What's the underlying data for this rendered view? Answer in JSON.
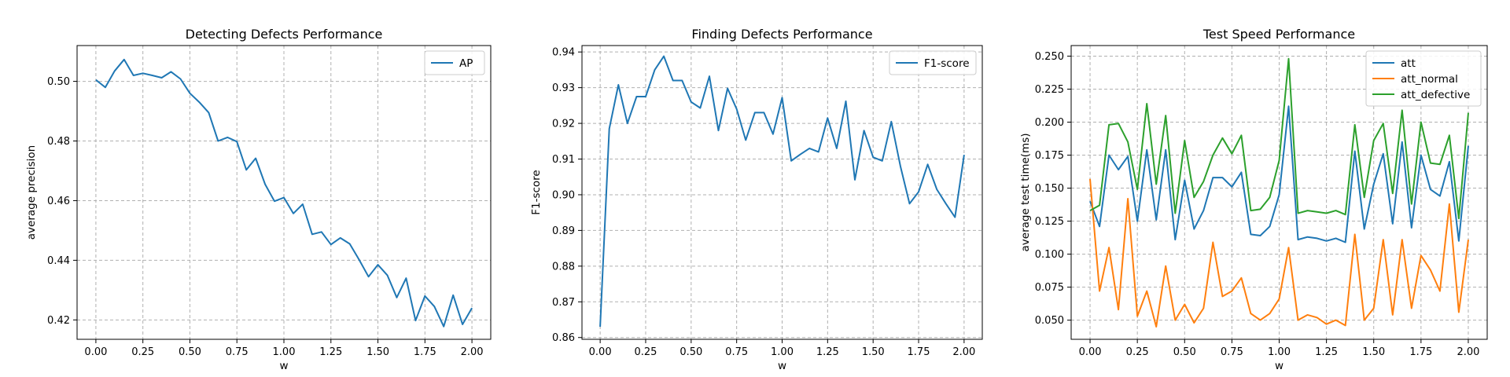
{
  "chart_data": [
    {
      "type": "line",
      "title": "Detecting Defects Performance",
      "xlabel": "w",
      "ylabel": "average precision",
      "xlim": [
        -0.1,
        2.1
      ],
      "ylim": [
        0.4135,
        0.512
      ],
      "xticks": [
        0.0,
        0.25,
        0.5,
        0.75,
        1.0,
        1.25,
        1.5,
        1.75,
        2.0
      ],
      "xtick_labels": [
        "0.00",
        "0.25",
        "0.50",
        "0.75",
        "1.00",
        "1.25",
        "1.50",
        "1.75",
        "2.00"
      ],
      "yticks": [
        0.42,
        0.44,
        0.46,
        0.48,
        0.5
      ],
      "ytick_labels": [
        "0.42",
        "0.44",
        "0.46",
        "0.48",
        "0.50"
      ],
      "grid": true,
      "legend_position": "upper-right",
      "x": [
        0.0,
        0.05,
        0.1,
        0.15,
        0.2,
        0.25,
        0.3,
        0.35,
        0.4,
        0.45,
        0.5,
        0.55,
        0.6,
        0.65,
        0.7,
        0.75,
        0.8,
        0.85,
        0.9,
        0.95,
        1.0,
        1.05,
        1.1,
        1.15,
        1.2,
        1.25,
        1.3,
        1.35,
        1.4,
        1.45,
        1.5,
        1.55,
        1.6,
        1.65,
        1.7,
        1.75,
        1.8,
        1.85,
        1.9,
        1.95,
        2.0
      ],
      "series": [
        {
          "name": "AP",
          "color": "#1f77b4",
          "values": [
            0.5005,
            0.498,
            0.5035,
            0.5073,
            0.502,
            0.5027,
            0.502,
            0.5012,
            0.5032,
            0.5008,
            0.496,
            0.493,
            0.4895,
            0.48,
            0.4812,
            0.4798,
            0.4703,
            0.4742,
            0.4655,
            0.4598,
            0.461,
            0.4557,
            0.4588,
            0.4487,
            0.4495,
            0.4453,
            0.4475,
            0.4455,
            0.4402,
            0.4345,
            0.4385,
            0.435,
            0.4275,
            0.434,
            0.4198,
            0.428,
            0.4245,
            0.4178,
            0.4283,
            0.4185,
            0.424
          ]
        }
      ]
    },
    {
      "type": "line",
      "title": "Finding Defects Performance",
      "xlabel": "w",
      "ylabel": "F1-score",
      "xlim": [
        -0.1,
        2.1
      ],
      "ylim": [
        0.8595,
        0.9418
      ],
      "xticks": [
        0.0,
        0.25,
        0.5,
        0.75,
        1.0,
        1.25,
        1.5,
        1.75,
        2.0
      ],
      "xtick_labels": [
        "0.00",
        "0.25",
        "0.50",
        "0.75",
        "1.00",
        "1.25",
        "1.50",
        "1.75",
        "2.00"
      ],
      "yticks": [
        0.86,
        0.87,
        0.88,
        0.89,
        0.9,
        0.91,
        0.92,
        0.93,
        0.94
      ],
      "ytick_labels": [
        "0.86",
        "0.87",
        "0.88",
        "0.89",
        "0.90",
        "0.91",
        "0.92",
        "0.93",
        "0.94"
      ],
      "grid": true,
      "legend_position": "upper-right",
      "x": [
        0.0,
        0.05,
        0.1,
        0.15,
        0.2,
        0.25,
        0.3,
        0.35,
        0.4,
        0.45,
        0.5,
        0.55,
        0.6,
        0.65,
        0.7,
        0.75,
        0.8,
        0.85,
        0.9,
        0.95,
        1.0,
        1.05,
        1.1,
        1.15,
        1.2,
        1.25,
        1.3,
        1.35,
        1.4,
        1.45,
        1.5,
        1.55,
        1.6,
        1.65,
        1.7,
        1.75,
        1.8,
        1.85,
        1.9,
        1.95,
        2.0
      ],
      "series": [
        {
          "name": "F1-score",
          "color": "#1f77b4",
          "values": [
            0.863,
            0.9185,
            0.9308,
            0.92,
            0.9275,
            0.9275,
            0.935,
            0.9388,
            0.932,
            0.932,
            0.926,
            0.9243,
            0.9332,
            0.918,
            0.9298,
            0.924,
            0.9153,
            0.923,
            0.923,
            0.917,
            0.9272,
            0.9095,
            0.9113,
            0.913,
            0.912,
            0.9215,
            0.913,
            0.9262,
            0.9042,
            0.918,
            0.9105,
            0.9095,
            0.9205,
            0.908,
            0.8975,
            0.9008,
            0.9085,
            0.9015,
            0.8975,
            0.8937,
            0.9112
          ]
        }
      ]
    },
    {
      "type": "line",
      "title": "Test Speed Performance",
      "xlabel": "w",
      "ylabel": "average test time(ms)",
      "xlim": [
        -0.1,
        2.1
      ],
      "ylim": [
        0.0355,
        0.258
      ],
      "xticks": [
        0.0,
        0.25,
        0.5,
        0.75,
        1.0,
        1.25,
        1.5,
        1.75,
        2.0
      ],
      "xtick_labels": [
        "0.00",
        "0.25",
        "0.50",
        "0.75",
        "1.00",
        "1.25",
        "1.50",
        "1.75",
        "2.00"
      ],
      "yticks": [
        0.05,
        0.075,
        0.1,
        0.125,
        0.15,
        0.175,
        0.2,
        0.225,
        0.25
      ],
      "ytick_labels": [
        "0.050",
        "0.075",
        "0.100",
        "0.125",
        "0.150",
        "0.175",
        "0.200",
        "0.225",
        "0.250"
      ],
      "grid": true,
      "legend_position": "upper-right",
      "x": [
        0.0,
        0.05,
        0.1,
        0.15,
        0.2,
        0.25,
        0.3,
        0.35,
        0.4,
        0.45,
        0.5,
        0.55,
        0.6,
        0.65,
        0.7,
        0.75,
        0.8,
        0.85,
        0.9,
        0.95,
        1.0,
        1.05,
        1.1,
        1.15,
        1.2,
        1.25,
        1.3,
        1.35,
        1.4,
        1.45,
        1.5,
        1.55,
        1.6,
        1.65,
        1.7,
        1.75,
        1.8,
        1.85,
        1.9,
        1.95,
        2.0
      ],
      "series": [
        {
          "name": "att",
          "color": "#1f77b4",
          "values": [
            0.14,
            0.121,
            0.175,
            0.164,
            0.174,
            0.125,
            0.179,
            0.126,
            0.179,
            0.111,
            0.156,
            0.119,
            0.133,
            0.158,
            0.158,
            0.151,
            0.162,
            0.115,
            0.114,
            0.121,
            0.145,
            0.212,
            0.111,
            0.113,
            0.112,
            0.11,
            0.112,
            0.109,
            0.178,
            0.119,
            0.153,
            0.176,
            0.123,
            0.185,
            0.12,
            0.175,
            0.149,
            0.144,
            0.17,
            0.11,
            0.182
          ]
        },
        {
          "name": "att_normal",
          "color": "#ff7f0e",
          "values": [
            0.157,
            0.072,
            0.105,
            0.058,
            0.142,
            0.053,
            0.072,
            0.045,
            0.091,
            0.05,
            0.062,
            0.048,
            0.059,
            0.109,
            0.068,
            0.072,
            0.082,
            0.055,
            0.05,
            0.055,
            0.066,
            0.105,
            0.05,
            0.054,
            0.052,
            0.047,
            0.05,
            0.046,
            0.115,
            0.05,
            0.059,
            0.111,
            0.054,
            0.111,
            0.059,
            0.099,
            0.088,
            0.072,
            0.138,
            0.056,
            0.111
          ]
        },
        {
          "name": "att_defective",
          "color": "#2ca02c",
          "values": [
            0.133,
            0.137,
            0.198,
            0.199,
            0.185,
            0.149,
            0.214,
            0.153,
            0.205,
            0.131,
            0.186,
            0.143,
            0.155,
            0.175,
            0.188,
            0.176,
            0.19,
            0.133,
            0.134,
            0.143,
            0.171,
            0.248,
            0.131,
            0.133,
            0.132,
            0.131,
            0.133,
            0.13,
            0.198,
            0.143,
            0.186,
            0.199,
            0.146,
            0.209,
            0.138,
            0.2,
            0.169,
            0.168,
            0.19,
            0.127,
            0.207
          ]
        }
      ]
    }
  ]
}
